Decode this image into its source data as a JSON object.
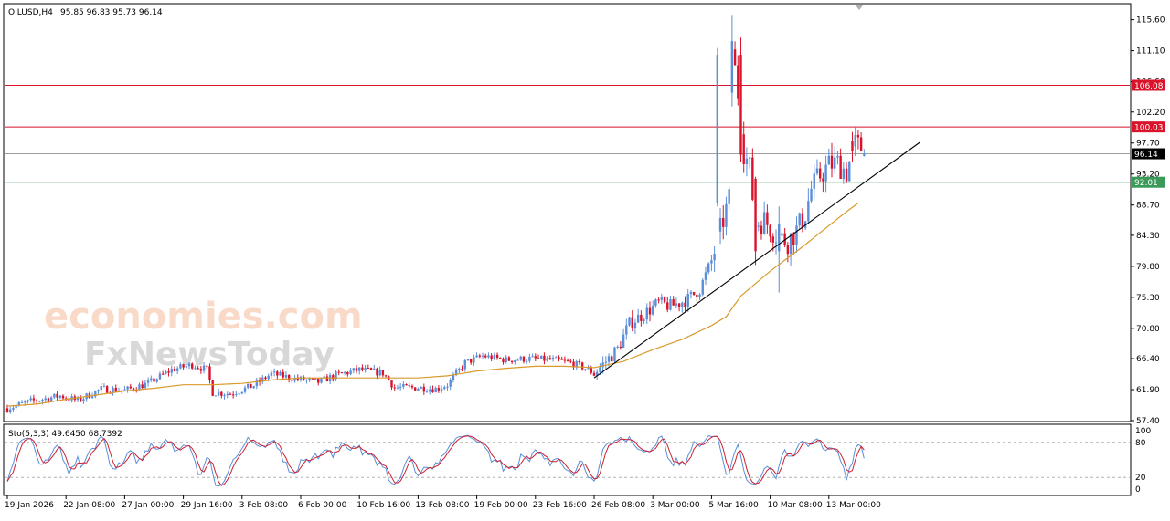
{
  "header": {
    "symbol_label": "OILUSD,H4",
    "ohlc_label": "95.85 96.83 95.73 96.14"
  },
  "stochastic": {
    "label": "Sto(5,3,3) 49.6450 68.7392",
    "tick_labels": [
      "100",
      "80",
      "20",
      "0"
    ],
    "tick_values": [
      100,
      80,
      20,
      0
    ],
    "levels": [
      80,
      20
    ],
    "main_color": "#5b8ed8",
    "signal_color": "#cc2030"
  },
  "watermark": {
    "line1": "economies.com",
    "line2": "FxNewsToday"
  },
  "colors": {
    "bull": "#5b8ed8",
    "bear": "#d8132a",
    "ma": "#d99a2b",
    "trendline": "#000000",
    "red_level": "#d8132a",
    "green_level": "#3a9a5a",
    "current_line": "#a0a0a0",
    "current_tag": "#000000"
  },
  "chart_data": {
    "type": "candlestick",
    "symbol": "OILUSD",
    "timeframe": "H4",
    "header_ohlc": {
      "open": 95.85,
      "high": 96.83,
      "low": 95.73,
      "close": 96.14
    },
    "ylim": [
      57.4,
      117.8
    ],
    "y_ticks": [
      "115.60",
      "111.10",
      "106.60",
      "102.20",
      "97.70",
      "93.20",
      "88.70",
      "84.30",
      "79.80",
      "75.30",
      "70.80",
      "66.40",
      "61.90",
      "57.40"
    ],
    "y_tick_values": [
      115.6,
      111.1,
      106.6,
      102.2,
      97.7,
      93.2,
      88.7,
      84.3,
      79.8,
      75.3,
      70.8,
      66.4,
      61.9,
      57.4
    ],
    "x_ticks": [
      {
        "label": "19 Jan 2026",
        "index": 0
      },
      {
        "label": "22 Jan 08:00",
        "index": 20
      },
      {
        "label": "27 Jan 00:00",
        "index": 40
      },
      {
        "label": "29 Jan 16:00",
        "index": 60
      },
      {
        "label": "3 Feb 08:00",
        "index": 80
      },
      {
        "label": "6 Feb 00:00",
        "index": 100
      },
      {
        "label": "10 Feb 16:00",
        "index": 120
      },
      {
        "label": "13 Feb 08:00",
        "index": 140
      },
      {
        "label": "19 Feb 00:00",
        "index": 160
      },
      {
        "label": "23 Feb 16:00",
        "index": 180
      },
      {
        "label": "26 Feb 08:00",
        "index": 200
      },
      {
        "label": "3 Mar 00:00",
        "index": 220
      },
      {
        "label": "5 Mar 16:00",
        "index": 240
      },
      {
        "label": "10 Mar 08:00",
        "index": 260
      },
      {
        "label": "13 Mar 00:00",
        "index": 280
      }
    ],
    "horizontal_levels": [
      {
        "name": "resistance-106",
        "value": 106.08,
        "label": "106.08",
        "color": "#d8132a"
      },
      {
        "name": "resistance-100",
        "value": 100.03,
        "label": "100.03",
        "color": "#d8132a"
      },
      {
        "name": "support-92",
        "value": 92.01,
        "label": "92.01",
        "color": "#3a9a5a"
      }
    ],
    "current_price": {
      "value": 96.14,
      "label": "96.14"
    },
    "trendline": {
      "from": {
        "index": 200,
        "value": 63.6
      },
      "to": {
        "index": 311,
        "value": 97.8
      }
    },
    "ma_points": [
      [
        0,
        59.5
      ],
      [
        10,
        59.8
      ],
      [
        20,
        60.5
      ],
      [
        30,
        61.1
      ],
      [
        40,
        61.7
      ],
      [
        50,
        62.1
      ],
      [
        60,
        62.6
      ],
      [
        70,
        62.6
      ],
      [
        80,
        62.8
      ],
      [
        90,
        63.3
      ],
      [
        100,
        63.6
      ],
      [
        110,
        63.6
      ],
      [
        120,
        63.6
      ],
      [
        130,
        63.6
      ],
      [
        140,
        63.6
      ],
      [
        150,
        63.9
      ],
      [
        160,
        64.6
      ],
      [
        170,
        65.0
      ],
      [
        180,
        65.3
      ],
      [
        190,
        65.3
      ],
      [
        200,
        65.1
      ],
      [
        210,
        66.0
      ],
      [
        220,
        67.7
      ],
      [
        230,
        69.2
      ],
      [
        240,
        71.2
      ],
      [
        245,
        72.5
      ],
      [
        250,
        75.5
      ],
      [
        255,
        77.3
      ],
      [
        260,
        79.1
      ],
      [
        265,
        80.7
      ],
      [
        270,
        82.3
      ],
      [
        275,
        84.0
      ],
      [
        280,
        85.7
      ],
      [
        285,
        87.4
      ],
      [
        290,
        89.0
      ]
    ],
    "key_bars": [
      {
        "index": 242,
        "open": 89.0,
        "high": 111.5,
        "low": 88.5,
        "close": 110.5
      },
      {
        "index": 247,
        "open": 105.0,
        "high": 116.3,
        "low": 103.0,
        "close": 112.5
      },
      {
        "index": 250,
        "open": 110.5,
        "high": 113.0,
        "low": 95.0,
        "close": 96.0
      },
      {
        "index": 255,
        "open": 92.5,
        "high": 92.8,
        "low": 80.0,
        "close": 82.0
      },
      {
        "index": 263,
        "open": 82.0,
        "high": 88.5,
        "low": 76.0,
        "close": 86.0
      },
      {
        "index": 288,
        "open": 98.0,
        "high": 99.3,
        "low": 95.0,
        "close": 96.5
      },
      {
        "index": 292,
        "open": 95.85,
        "high": 96.83,
        "low": 95.73,
        "close": 96.14
      }
    ]
  }
}
